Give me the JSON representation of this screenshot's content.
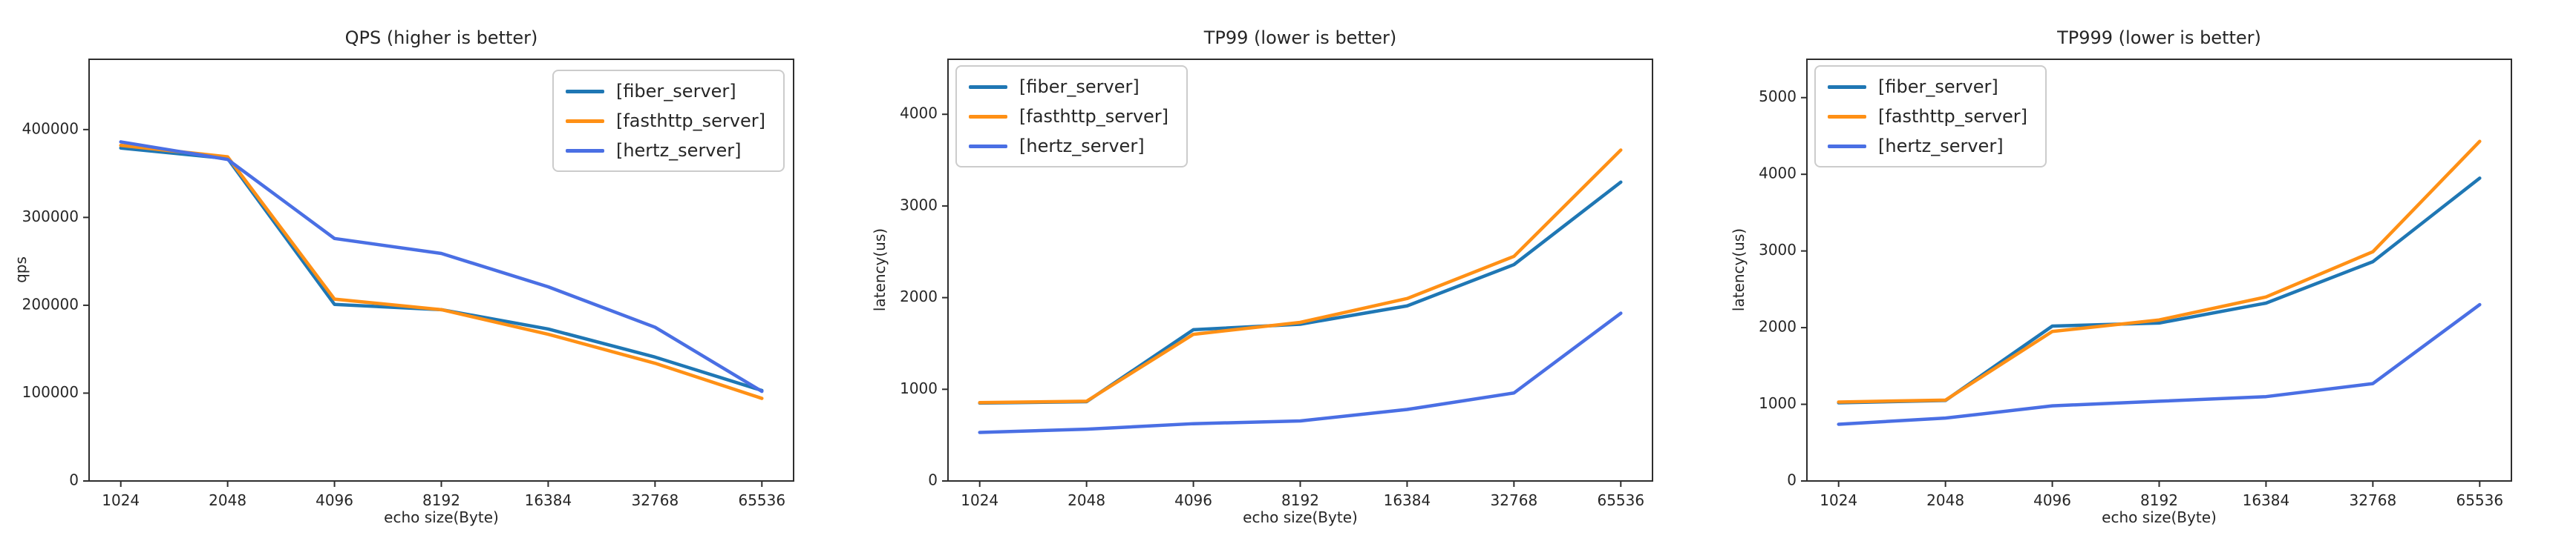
{
  "style": {
    "background": "#ffffff",
    "text_color": "#262626",
    "axis_color": "#2e2e2e",
    "legend_border_color": "#cccccc"
  },
  "legend_labels": [
    "[fiber_server]",
    "[fasthttp_server]",
    "[hertz_server]"
  ],
  "chart_data": [
    {
      "type": "line",
      "title": "QPS (higher is better)",
      "xlabel": "echo size(Byte)",
      "ylabel": "qps",
      "categories": [
        "1024",
        "2048",
        "4096",
        "8192",
        "16384",
        "32768",
        "65536"
      ],
      "yticks": [
        0,
        100000,
        200000,
        300000,
        400000
      ],
      "ylim": [
        0,
        480000
      ],
      "grid": false,
      "legend_loc": "upper right",
      "series": [
        {
          "name": "[fiber_server]",
          "color": "#1f77b4",
          "values": [
            379000,
            367000,
            201000,
            195000,
            173000,
            141000,
            103000
          ]
        },
        {
          "name": "[fasthttp_server]",
          "color": "#ff9015",
          "values": [
            382000,
            369000,
            207000,
            195000,
            167000,
            134000,
            94000
          ]
        },
        {
          "name": "[hertz_server]",
          "color": "#4a6fe4",
          "values": [
            386000,
            366000,
            276000,
            259000,
            221000,
            175000,
            102000
          ]
        }
      ]
    },
    {
      "type": "line",
      "title": "TP99 (lower is better)",
      "xlabel": "echo size(Byte)",
      "ylabel": "latency(us)",
      "categories": [
        "1024",
        "2048",
        "4096",
        "8192",
        "16384",
        "32768",
        "65536"
      ],
      "yticks": [
        0,
        1000,
        2000,
        3000,
        4000
      ],
      "ylim": [
        0,
        4600
      ],
      "grid": false,
      "legend_loc": "upper left",
      "series": [
        {
          "name": "[fiber_server]",
          "color": "#1f77b4",
          "values": [
            850,
            865,
            1650,
            1710,
            1910,
            2360,
            3260
          ]
        },
        {
          "name": "[fasthttp_server]",
          "color": "#ff9015",
          "values": [
            855,
            870,
            1600,
            1730,
            1990,
            2450,
            3610
          ]
        },
        {
          "name": "[hertz_server]",
          "color": "#4a6fe4",
          "values": [
            530,
            565,
            625,
            655,
            780,
            960,
            1830
          ]
        }
      ]
    },
    {
      "type": "line",
      "title": "TP999 (lower is better)",
      "xlabel": "echo size(Byte)",
      "ylabel": "latency(us)",
      "categories": [
        "1024",
        "2048",
        "4096",
        "8192",
        "16384",
        "32768",
        "65536"
      ],
      "yticks": [
        0,
        1000,
        2000,
        3000,
        4000,
        5000
      ],
      "ylim": [
        0,
        5500
      ],
      "grid": false,
      "legend_loc": "upper left",
      "series": [
        {
          "name": "[fiber_server]",
          "color": "#1f77b4",
          "values": [
            1020,
            1050,
            2020,
            2060,
            2320,
            2860,
            3950
          ]
        },
        {
          "name": "[fasthttp_server]",
          "color": "#ff9015",
          "values": [
            1030,
            1055,
            1950,
            2100,
            2400,
            2990,
            4430
          ]
        },
        {
          "name": "[hertz_server]",
          "color": "#4a6fe4",
          "values": [
            740,
            820,
            980,
            1040,
            1100,
            1270,
            2300
          ]
        }
      ]
    }
  ]
}
